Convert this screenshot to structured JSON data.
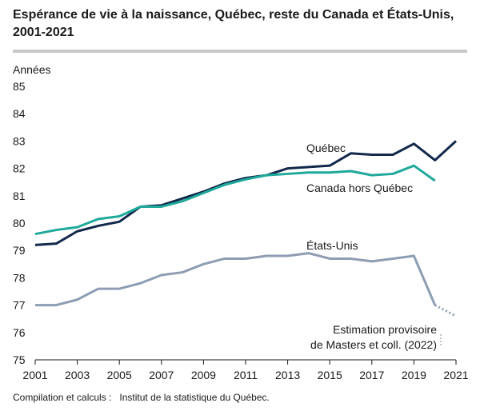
{
  "title_line1": "Espérance de vie à la naissance, Québec, reste du Canada et États-Unis,",
  "title_line2": "2001-2021",
  "source": "Compilation et calculs :   Institut de la statistique du Québec.",
  "chart_data": {
    "type": "line",
    "ylabel": "Années",
    "xlim": [
      2001,
      2021
    ],
    "ylim": [
      75,
      85
    ],
    "yticks": [
      75,
      76,
      77,
      78,
      79,
      80,
      81,
      82,
      83,
      84,
      85
    ],
    "xticks": [
      2001,
      2003,
      2005,
      2007,
      2009,
      2011,
      2013,
      2015,
      2017,
      2019,
      2021
    ],
    "grid": false,
    "series": [
      {
        "name": "Québec",
        "color": "#13294b",
        "x": [
          2001,
          2002,
          2003,
          2004,
          2005,
          2006,
          2007,
          2008,
          2009,
          2010,
          2011,
          2012,
          2013,
          2014,
          2015,
          2016,
          2017,
          2018,
          2019,
          2020,
          2021
        ],
        "y": [
          79.2,
          79.25,
          79.7,
          79.9,
          80.05,
          80.6,
          80.65,
          80.9,
          81.15,
          81.45,
          81.65,
          81.75,
          82.0,
          82.05,
          82.1,
          82.55,
          82.5,
          82.5,
          82.9,
          82.3,
          83.0
        ]
      },
      {
        "name": "Canada hors Québec",
        "color": "#1fa99b",
        "x": [
          2001,
          2002,
          2003,
          2004,
          2005,
          2006,
          2007,
          2008,
          2009,
          2010,
          2011,
          2012,
          2013,
          2014,
          2015,
          2016,
          2017,
          2018,
          2019,
          2020
        ],
        "y": [
          79.6,
          79.75,
          79.85,
          80.15,
          80.25,
          80.6,
          80.6,
          80.8,
          81.1,
          81.4,
          81.6,
          81.75,
          81.8,
          81.85,
          81.85,
          81.9,
          81.75,
          81.8,
          82.1,
          81.55
        ]
      },
      {
        "name": "États-Unis",
        "color": "#8d9db3",
        "x": [
          2001,
          2002,
          2003,
          2004,
          2005,
          2006,
          2007,
          2008,
          2009,
          2010,
          2011,
          2012,
          2013,
          2014,
          2015,
          2016,
          2017,
          2018,
          2019,
          2020
        ],
        "y": [
          77.0,
          77.0,
          77.2,
          77.6,
          77.6,
          77.8,
          78.1,
          78.2,
          78.5,
          78.7,
          78.7,
          78.8,
          78.8,
          78.9,
          78.7,
          78.7,
          78.6,
          78.7,
          78.8,
          77.0
        ],
        "provisional": {
          "x": [
            2020,
            2021
          ],
          "y": [
            77.0,
            76.6
          ]
        }
      }
    ],
    "annotation": {
      "line1": "Estimation provisoire",
      "line2": "de Masters et coll. (2022)",
      "target_x": 2021,
      "target_y": 76.6
    }
  }
}
